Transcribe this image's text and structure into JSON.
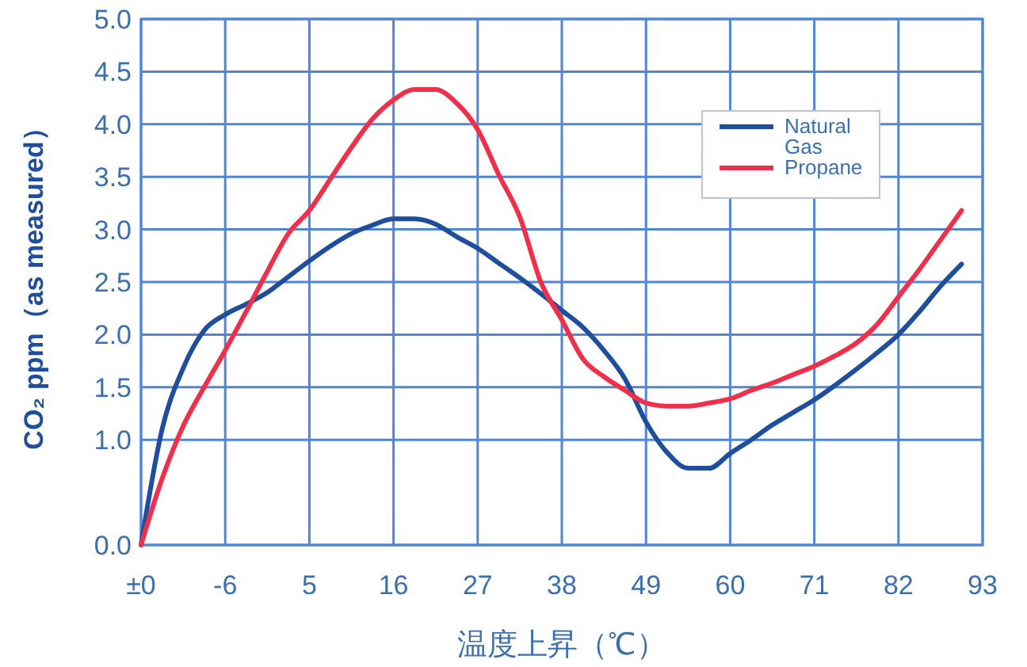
{
  "chart_data": {
    "type": "line",
    "xlabel": "温度上昇（℃）",
    "ylabel": "CO₂ ppm（as measured）",
    "categories": [
      "±0",
      null,
      null,
      null,
      "-6",
      null,
      null,
      null,
      "5",
      null,
      null,
      null,
      "16",
      null,
      null,
      null,
      "27",
      null,
      null,
      null,
      "38",
      null,
      null,
      null,
      "49",
      null,
      null,
      null,
      "60",
      null,
      null,
      null,
      "71",
      null,
      null,
      null,
      "82",
      null,
      null,
      null,
      "93"
    ],
    "ylim": [
      0,
      5
    ],
    "yticks": [
      {
        "value": 0,
        "label": "0.0"
      },
      {
        "value": 1,
        "label": "1.0"
      },
      1.5,
      {
        "value": 2,
        "label": "2.0"
      },
      2.5,
      {
        "value": 3,
        "label": "3.0"
      },
      3.5,
      {
        "value": 4,
        "label": "4.0"
      },
      4.5,
      {
        "value": 5,
        "label": "5.0"
      }
    ],
    "grid": true,
    "legend": "top right",
    "marker": "none",
    "line_style": "solid",
    "series": [
      {
        "name": "Natural Gas",
        "color": "#1f4e9c",
        "values": [
          0,
          1.1,
          1.68,
          2.04,
          2.19,
          2.29,
          2.4,
          2.55,
          2.7,
          2.84,
          2.96,
          3.04,
          3.1,
          3.1,
          3.05,
          2.93,
          2.82,
          2.68,
          2.54,
          2.39,
          2.23,
          2.07,
          1.85,
          1.58,
          1.17,
          0.88,
          0.73,
          0.73,
          0.87,
          1.0,
          1.14,
          1.26,
          1.38,
          1.52,
          1.67,
          1.83,
          2.0,
          2.22,
          2.46,
          2.67,
          null
        ]
      },
      {
        "name": "Propane",
        "color": "#f0304a",
        "values": [
          0,
          0.63,
          1.13,
          1.5,
          1.85,
          2.22,
          2.6,
          2.96,
          3.18,
          3.48,
          3.78,
          4.05,
          4.23,
          4.33,
          4.33,
          4.2,
          3.95,
          3.52,
          3.12,
          2.5,
          2.14,
          1.77,
          1.6,
          1.47,
          1.35,
          1.32,
          1.32,
          1.35,
          1.39,
          1.47,
          1.54,
          1.62,
          1.7,
          1.8,
          1.92,
          2.1,
          2.36,
          2.62,
          2.9,
          3.18,
          null
        ]
      }
    ]
  }
}
